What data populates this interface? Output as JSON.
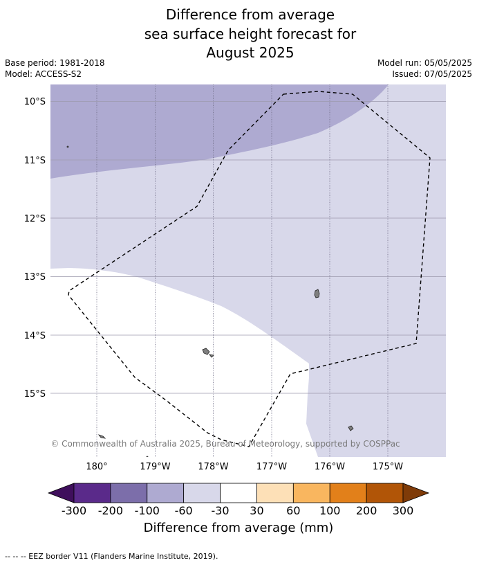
{
  "title": {
    "line1": "Difference from average",
    "line2": "sea surface height forecast for",
    "line3": "August 2025"
  },
  "meta": {
    "base_period": "Base period: 1981-2018",
    "model": "Model: ACCESS-S2",
    "model_run": "Model run: 05/05/2025",
    "issued": "Issued: 07/05/2025"
  },
  "map": {
    "lat_labels": [
      "10°S",
      "11°S",
      "12°S",
      "13°S",
      "14°S",
      "15°S"
    ],
    "lon_labels": [
      "180°",
      "179°W",
      "178°W",
      "177°W",
      "176°W",
      "175°W"
    ],
    "copyright": "© Commonwealth of Australia 2025, Bureau of Meteorology, supported by COSPPac",
    "colors": {
      "band_-200_-100": "#aeaad1",
      "band_-60_-30": "#d8d8ea",
      "band_-30_30": "#ffffff",
      "eez_line": "#000000",
      "land": "#7f7f7f"
    }
  },
  "colorbar": {
    "ticks": [
      "-300",
      "-200",
      "-100",
      "-60",
      "-30",
      "30",
      "60",
      "100",
      "200",
      "300"
    ],
    "colors": [
      "#3f0f5c",
      "#5a2a8a",
      "#7c6eaa",
      "#aeaad1",
      "#d8d8ea",
      "#ffffff",
      "#fde0b7",
      "#f9b65f",
      "#e2801a",
      "#b15507",
      "#7f3b08"
    ],
    "label": "Difference from average (mm)"
  },
  "footer": {
    "legend": "--  --  -- EEZ border V11 (Flanders Marine Institute, 2019)."
  }
}
